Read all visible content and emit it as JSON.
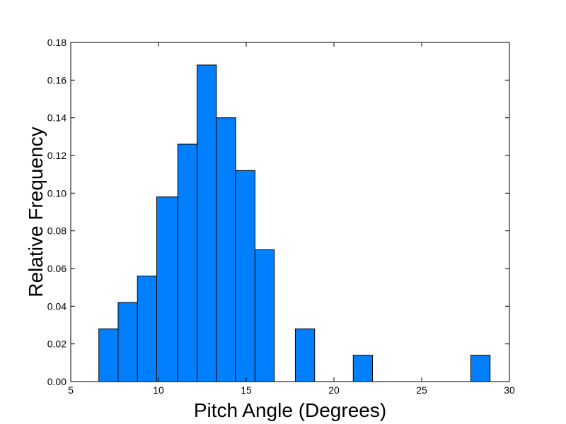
{
  "chart_data": {
    "type": "bar",
    "title": "",
    "xlabel": "Pitch Angle (Degrees)",
    "ylabel": "Relative Frequency",
    "xlim": [
      5,
      30
    ],
    "ylim": [
      0,
      0.18
    ],
    "grid": false,
    "bar_color": "#0080ff",
    "edge_color": "#000000",
    "x_ticks": [
      5,
      10,
      15,
      20,
      25,
      30
    ],
    "x_tick_labels": [
      "5",
      "10",
      "15",
      "20",
      "25",
      "30"
    ],
    "y_ticks": [
      0,
      0.02,
      0.04,
      0.06,
      0.08,
      0.1,
      0.12,
      0.14,
      0.16,
      0.18
    ],
    "y_tick_labels": [
      "0.00",
      "0.02",
      "0.04",
      "0.06",
      "0.08",
      "0.10",
      "0.12",
      "0.14",
      "0.16",
      "0.18"
    ],
    "bins": [
      {
        "x0": 6.6,
        "x1": 7.7,
        "value": 0.028
      },
      {
        "x0": 7.7,
        "x1": 8.8,
        "value": 0.042
      },
      {
        "x0": 8.8,
        "x1": 9.9,
        "value": 0.056
      },
      {
        "x0": 9.9,
        "x1": 11.1,
        "value": 0.098
      },
      {
        "x0": 11.1,
        "x1": 12.2,
        "value": 0.126
      },
      {
        "x0": 12.2,
        "x1": 13.3,
        "value": 0.168
      },
      {
        "x0": 13.3,
        "x1": 14.4,
        "value": 0.14
      },
      {
        "x0": 14.4,
        "x1": 15.5,
        "value": 0.112
      },
      {
        "x0": 15.5,
        "x1": 16.6,
        "value": 0.07
      },
      {
        "x0": 17.8,
        "x1": 18.9,
        "value": 0.028
      },
      {
        "x0": 21.1,
        "x1": 22.2,
        "value": 0.014
      },
      {
        "x0": 27.8,
        "x1": 28.9,
        "value": 0.014
      }
    ]
  }
}
